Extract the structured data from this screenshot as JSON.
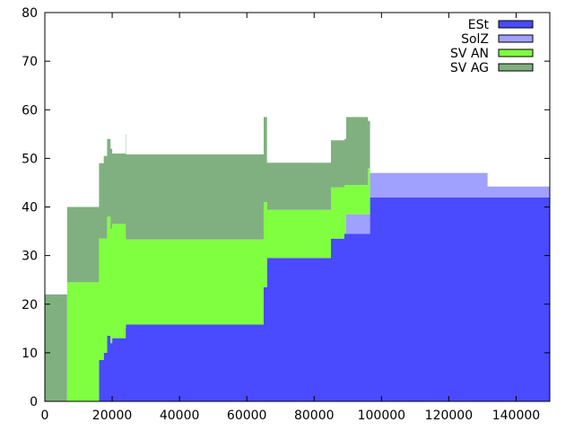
{
  "chart_data": {
    "type": "area",
    "stacked": true,
    "xlim": [
      0,
      150000
    ],
    "ylim": [
      0,
      80
    ],
    "x_ticks": [
      0,
      20000,
      40000,
      60000,
      80000,
      100000,
      120000,
      140000
    ],
    "y_ticks": [
      0,
      10,
      20,
      30,
      40,
      50,
      60,
      70,
      80
    ],
    "x_tick_labels": [
      "0",
      "20000",
      "40000",
      "60000",
      "80000",
      "100000",
      "120000",
      "140000"
    ],
    "y_tick_labels": [
      "0",
      "10",
      "20",
      "30",
      "40",
      "50",
      "60",
      "70",
      "80"
    ],
    "grid": false,
    "legend_position": "top-right",
    "x": [
      0,
      6500,
      6600,
      16000,
      16100,
      17500,
      18500,
      19500,
      20000,
      24000,
      24100,
      65000,
      65700,
      66000,
      85000,
      89000,
      89500,
      96000,
      96600,
      131000,
      131500,
      150000
    ],
    "series": [
      {
        "name": "ESt",
        "color": "#4a4aff",
        "values": [
          0,
          0,
          0,
          0,
          8.5,
          10,
          13.5,
          12,
          13,
          15,
          15.8,
          23.5,
          23.5,
          29.5,
          33.5,
          34.5,
          34.5,
          34.5,
          42,
          42,
          42,
          42
        ]
      },
      {
        "name": "SolZ",
        "color": "#a0a0ff",
        "values": [
          0,
          0,
          0,
          0,
          0,
          0,
          0,
          0,
          0,
          0,
          0,
          0,
          0,
          0,
          0,
          0,
          4,
          4,
          5,
          5,
          2.2,
          2.2
        ]
      },
      {
        "name": "SV AN",
        "color": "#80ff40",
        "values": [
          0,
          0,
          24.5,
          24.5,
          25,
          23.5,
          24.5,
          23.5,
          23.5,
          19,
          17.5,
          17.5,
          17.5,
          9.9,
          10.5,
          10,
          6,
          9.5,
          0,
          0,
          0,
          0
        ]
      },
      {
        "name": "SV AG",
        "color": "#80b080",
        "values": [
          22,
          22,
          15.5,
          15.5,
          15.5,
          17,
          16,
          16.5,
          14.5,
          21,
          17.5,
          17.5,
          17.5,
          9.7,
          9.7,
          9.5,
          14,
          9.7,
          0,
          0,
          0,
          0
        ]
      }
    ]
  }
}
